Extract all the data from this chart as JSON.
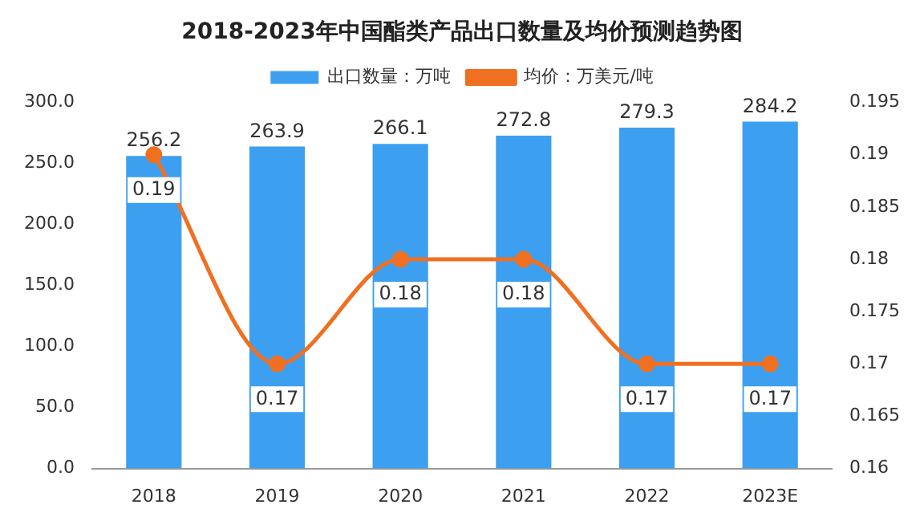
{
  "chart_data": {
    "type": "bar",
    "title": "2018-2023年中国酯类产品出口数量及均价预测趋势图",
    "categories": [
      "2018",
      "2019",
      "2020",
      "2021",
      "2022",
      "2023E"
    ],
    "series": [
      {
        "name": "出口数量：万吨",
        "color": "#3d9ff0",
        "values": [
          256.2,
          263.9,
          266.1,
          272.8,
          279.3,
          284.2
        ]
      },
      {
        "name": "均价：万美元/吨",
        "type": "line",
        "axis": "y2",
        "color": "#f07022",
        "values": [
          0.19,
          0.17,
          0.18,
          0.18,
          0.17,
          0.17
        ]
      }
    ],
    "ylim": [
      0,
      300
    ],
    "yticks": [
      {
        "value": 0,
        "label": "0.0"
      },
      {
        "value": 50,
        "label": "50.0"
      },
      {
        "value": 100,
        "label": "100.0"
      },
      {
        "value": 150,
        "label": "150.0"
      },
      {
        "value": 200,
        "label": "200.0"
      },
      {
        "value": 250,
        "label": "250.0"
      },
      {
        "value": 300,
        "label": "300.0"
      }
    ],
    "y2lim": [
      0.16,
      0.195
    ],
    "y2ticks": [
      0.16,
      0.165,
      0.17,
      0.175,
      0.18,
      0.185,
      0.19,
      0.195
    ],
    "data_labels": true,
    "legend": "top",
    "marker": "circle",
    "grid": false
  }
}
